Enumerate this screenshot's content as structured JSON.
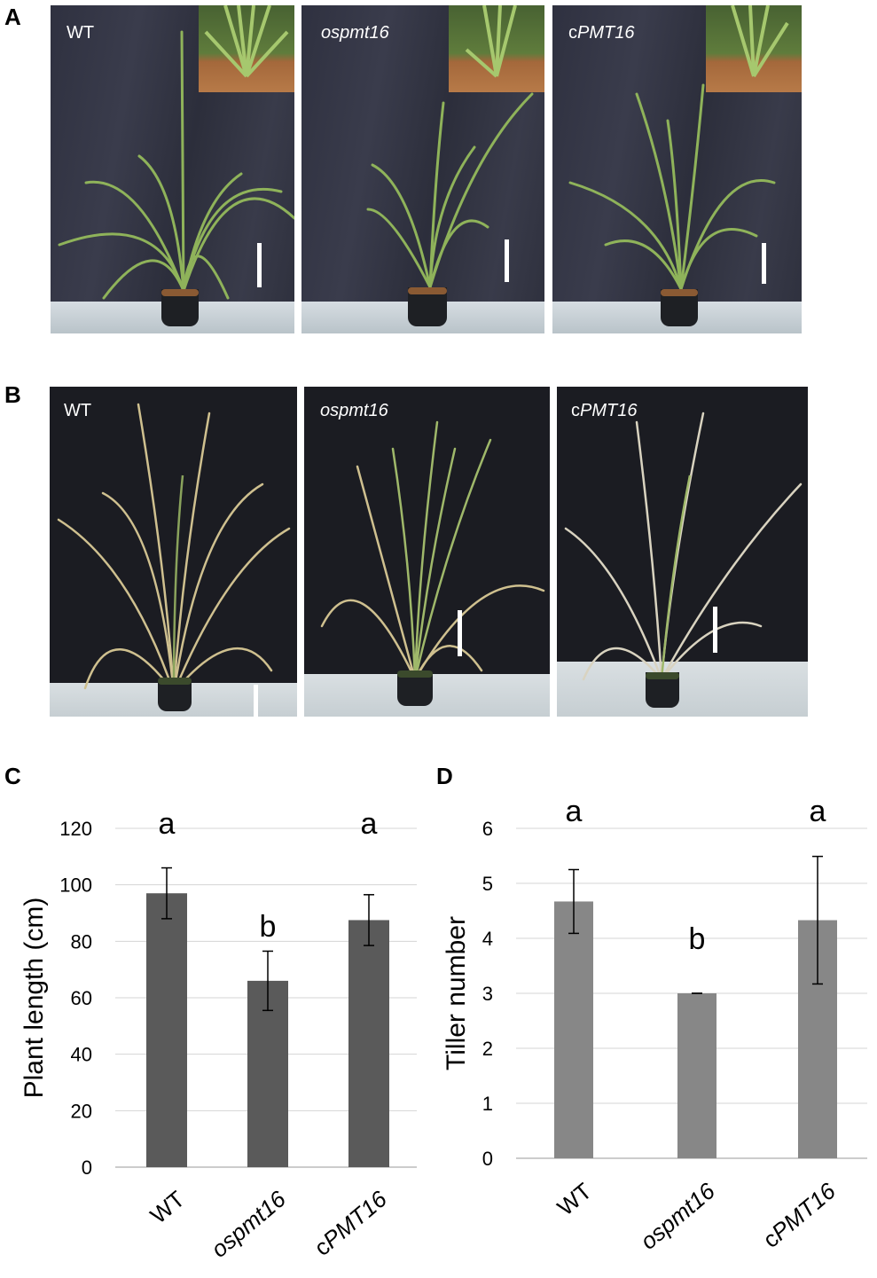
{
  "panels": {
    "a": "A",
    "b": "B",
    "c": "C",
    "d": "D"
  },
  "photos_a": [
    {
      "label": "WT",
      "italic": false
    },
    {
      "label": "ospmt16",
      "italic": true
    },
    {
      "label_prefix": "c",
      "label_italic": "PMT16",
      "italic": "mixed"
    }
  ],
  "photos_b": [
    {
      "label": "WT",
      "italic": false
    },
    {
      "label": "ospmt16",
      "italic": true
    },
    {
      "label_prefix": "c",
      "label_italic": "PMT16",
      "italic": "mixed"
    }
  ],
  "chart_data": [
    {
      "type": "bar",
      "panel": "C",
      "ylabel": "Plant length (cm)",
      "categories": [
        "WT",
        "ospmt16",
        "cPMT16"
      ],
      "category_display": [
        {
          "prefix": "",
          "italic": "",
          "plain": "WT"
        },
        {
          "prefix": "",
          "italic": "ospmt16",
          "plain": ""
        },
        {
          "prefix": "c",
          "italic": "PMT16",
          "plain": ""
        }
      ],
      "values": [
        97,
        66,
        87.5
      ],
      "errors": [
        9,
        10.5,
        9
      ],
      "significance": [
        "a",
        "b",
        "a"
      ],
      "ylim": [
        0,
        120
      ],
      "yticks": [
        0,
        20,
        40,
        60,
        80,
        100,
        120
      ],
      "grid": true,
      "bar_color": "#5a5a5a"
    },
    {
      "type": "bar",
      "panel": "D",
      "ylabel": "Tiller number",
      "categories": [
        "WT",
        "ospmt16",
        "cPMT16"
      ],
      "category_display": [
        {
          "prefix": "",
          "italic": "",
          "plain": "WT"
        },
        {
          "prefix": "",
          "italic": "ospmt16",
          "plain": ""
        },
        {
          "prefix": "c",
          "italic": "PMT16",
          "plain": ""
        }
      ],
      "values": [
        4.67,
        3.0,
        4.33
      ],
      "errors": [
        0.58,
        0.0,
        1.16
      ],
      "significance": [
        "a",
        "b",
        "a"
      ],
      "ylim": [
        0,
        6
      ],
      "yticks": [
        0,
        1,
        2,
        3,
        4,
        5,
        6
      ],
      "grid": true,
      "bar_color": "#878787"
    }
  ]
}
